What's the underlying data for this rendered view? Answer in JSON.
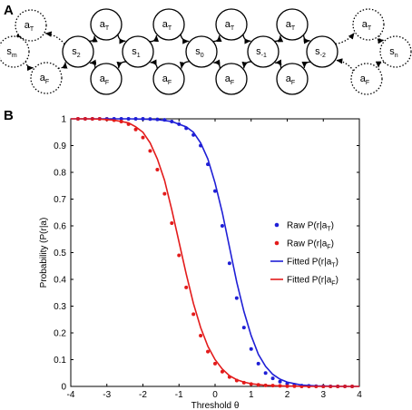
{
  "panels": {
    "a_label": "A",
    "b_label": "B"
  },
  "diagram": {
    "nodes": [
      {
        "id": "am_t",
        "base": "a",
        "sub": "T",
        "style": "dotted"
      },
      {
        "id": "am_f",
        "base": "a",
        "sub": "F",
        "style": "dotted"
      },
      {
        "id": "sm",
        "base": "s",
        "sub": "m",
        "style": "dotted"
      },
      {
        "id": "s2",
        "base": "s",
        "sub": "2",
        "style": "solid"
      },
      {
        "id": "a1_t",
        "base": "a",
        "sub": "T",
        "style": "solid"
      },
      {
        "id": "a1_f",
        "base": "a",
        "sub": "F",
        "style": "solid"
      },
      {
        "id": "s1",
        "base": "s",
        "sub": "1",
        "style": "solid"
      },
      {
        "id": "a2_t",
        "base": "a",
        "sub": "T",
        "style": "solid"
      },
      {
        "id": "a2_f",
        "base": "a",
        "sub": "F",
        "style": "solid"
      },
      {
        "id": "s0",
        "base": "s",
        "sub": "0",
        "style": "solid"
      },
      {
        "id": "a3_t",
        "base": "a",
        "sub": "T",
        "style": "solid"
      },
      {
        "id": "a3_f",
        "base": "a",
        "sub": "F",
        "style": "solid"
      },
      {
        "id": "sm1",
        "base": "s",
        "sub": "-1",
        "style": "solid"
      },
      {
        "id": "a4_t",
        "base": "a",
        "sub": "T",
        "style": "solid"
      },
      {
        "id": "a4_f",
        "base": "a",
        "sub": "F",
        "style": "solid"
      },
      {
        "id": "sm2",
        "base": "s",
        "sub": "-2",
        "style": "solid"
      },
      {
        "id": "an_t",
        "base": "a",
        "sub": "T",
        "style": "dotted"
      },
      {
        "id": "an_f",
        "base": "a",
        "sub": "F",
        "style": "dotted"
      },
      {
        "id": "sn",
        "base": "s",
        "sub": "n",
        "style": "dotted"
      }
    ],
    "edges": [
      [
        "am_t",
        "sm",
        "dotted"
      ],
      [
        "sm",
        "am_f",
        "dotted"
      ],
      [
        "am_f",
        "s2",
        "dotted"
      ],
      [
        "s2",
        "am_t",
        "dotted"
      ],
      [
        "s2",
        "a1_t",
        "solid"
      ],
      [
        "a1_t",
        "s1",
        "solid"
      ],
      [
        "s1",
        "a1_f",
        "solid"
      ],
      [
        "a1_f",
        "s2",
        "solid"
      ],
      [
        "s1",
        "a2_t",
        "solid"
      ],
      [
        "a2_t",
        "s0",
        "solid"
      ],
      [
        "s0",
        "a2_f",
        "solid"
      ],
      [
        "a2_f",
        "s1",
        "solid"
      ],
      [
        "s0",
        "a3_t",
        "solid"
      ],
      [
        "a3_t",
        "sm1",
        "solid"
      ],
      [
        "sm1",
        "a3_f",
        "solid"
      ],
      [
        "a3_f",
        "s0",
        "solid"
      ],
      [
        "sm1",
        "a4_t",
        "solid"
      ],
      [
        "a4_t",
        "sm2",
        "solid"
      ],
      [
        "sm2",
        "a4_f",
        "solid"
      ],
      [
        "a4_f",
        "sm1",
        "solid"
      ],
      [
        "sm2",
        "an_t",
        "dotted"
      ],
      [
        "an_t",
        "sn",
        "dotted"
      ],
      [
        "sn",
        "an_f",
        "dotted"
      ],
      [
        "an_f",
        "sm2",
        "dotted"
      ]
    ]
  },
  "chart_data": {
    "type": "line",
    "title": "",
    "xlabel": "Threshold θ",
    "ylabel": "Probability (P(r|a)",
    "xlim": [
      -4,
      4
    ],
    "ylim": [
      0,
      1
    ],
    "xticks": [
      -4,
      -3,
      -2,
      -1,
      0,
      1,
      2,
      3,
      4
    ],
    "xtick_labels": [
      "-4",
      "-3",
      "-2",
      "-1",
      "0",
      "1",
      "2",
      "3",
      "4"
    ],
    "yticks": [
      0,
      0.1,
      0.2,
      0.3,
      0.4,
      0.5,
      0.6,
      0.7,
      0.8,
      0.9,
      1
    ],
    "ytick_labels": [
      "0",
      "0.1",
      "0.2",
      "0.3",
      "0.4",
      "0.5",
      "0.6",
      "0.7",
      "0.8",
      "0.9",
      "1"
    ],
    "grid": false,
    "legend_position": "right",
    "colors": {
      "blue": "#1f1fd6",
      "red": "#e31b1b"
    },
    "series": [
      {
        "name": "Raw P(r|aT)",
        "label_base": "Raw P(r|a",
        "label_sub": "T",
        "label_end": ")",
        "kind": "scatter",
        "color": "#1f1fd6",
        "x": [
          -3.8,
          -3.6,
          -3.4,
          -3.2,
          -3.0,
          -2.8,
          -2.6,
          -2.4,
          -2.2,
          -2.0,
          -1.8,
          -1.6,
          -1.4,
          -1.2,
          -1.0,
          -0.8,
          -0.6,
          -0.4,
          -0.2,
          0.0,
          0.2,
          0.4,
          0.6,
          0.8,
          1.0,
          1.2,
          1.4,
          1.6,
          1.8,
          2.0,
          2.2,
          2.4,
          2.6,
          2.8,
          3.0,
          3.2,
          3.4,
          3.6,
          3.8
        ],
        "y": [
          1.0,
          1.0,
          1.0,
          1.0,
          1.0,
          1.0,
          1.0,
          1.0,
          1.0,
          1.0,
          0.999,
          0.998,
          0.996,
          0.99,
          0.98,
          0.965,
          0.94,
          0.9,
          0.83,
          0.73,
          0.6,
          0.46,
          0.33,
          0.22,
          0.14,
          0.085,
          0.05,
          0.03,
          0.018,
          0.01,
          0.006,
          0.003,
          0.002,
          0.001,
          0.0,
          0.0,
          0.0,
          0.0,
          0.0
        ]
      },
      {
        "name": "Raw P(r|aF)",
        "label_base": "Raw P(r|a",
        "label_sub": "F",
        "label_end": ")",
        "kind": "scatter",
        "color": "#e31b1b",
        "x": [
          -3.8,
          -3.6,
          -3.4,
          -3.2,
          -3.0,
          -2.8,
          -2.6,
          -2.4,
          -2.2,
          -2.0,
          -1.8,
          -1.6,
          -1.4,
          -1.2,
          -1.0,
          -0.8,
          -0.6,
          -0.4,
          -0.2,
          0.0,
          0.2,
          0.4,
          0.6,
          0.8,
          1.0,
          1.2,
          1.4,
          1.6,
          1.8,
          2.0,
          2.2,
          2.4,
          2.6,
          2.8,
          3.0,
          3.2,
          3.4,
          3.6,
          3.8
        ],
        "y": [
          1.0,
          1.0,
          1.0,
          1.0,
          0.998,
          0.995,
          0.99,
          0.98,
          0.96,
          0.93,
          0.88,
          0.81,
          0.72,
          0.61,
          0.49,
          0.37,
          0.27,
          0.19,
          0.13,
          0.085,
          0.055,
          0.035,
          0.022,
          0.014,
          0.009,
          0.006,
          0.004,
          0.003,
          0.002,
          0.001,
          0.001,
          0.0,
          0.0,
          0.0,
          0.0,
          0.0,
          0.0,
          0.0,
          0.0
        ]
      },
      {
        "name": "Fitted P(r|aT)",
        "label_base": "Fitted P(r|a",
        "label_sub": "T",
        "label_end": ")",
        "kind": "line",
        "color": "#1f1fd6",
        "x": [
          -4.0,
          -3.6,
          -3.2,
          -2.8,
          -2.4,
          -2.0,
          -1.6,
          -1.2,
          -0.8,
          -0.6,
          -0.4,
          -0.2,
          0.0,
          0.2,
          0.4,
          0.6,
          0.8,
          1.0,
          1.2,
          1.4,
          1.6,
          1.8,
          2.0,
          2.4,
          2.8,
          3.2,
          3.6,
          4.0
        ],
        "y": [
          1.0,
          1.0,
          1.0,
          1.0,
          1.0,
          0.999,
          0.997,
          0.99,
          0.97,
          0.95,
          0.91,
          0.85,
          0.76,
          0.65,
          0.52,
          0.39,
          0.28,
          0.19,
          0.12,
          0.075,
          0.045,
          0.027,
          0.016,
          0.005,
          0.002,
          0.001,
          0.0,
          0.0
        ]
      },
      {
        "name": "Fitted P(r|aF)",
        "label_base": "Fitted P(r|a",
        "label_sub": "F",
        "label_end": ")",
        "kind": "line",
        "color": "#e31b1b",
        "x": [
          -4.0,
          -3.6,
          -3.2,
          -2.8,
          -2.4,
          -2.2,
          -2.0,
          -1.8,
          -1.6,
          -1.4,
          -1.2,
          -1.0,
          -0.8,
          -0.6,
          -0.4,
          -0.2,
          0.0,
          0.2,
          0.4,
          0.6,
          0.8,
          1.0,
          1.4,
          1.8,
          2.2,
          2.6,
          3.0,
          3.5,
          4.0
        ],
        "y": [
          1.0,
          1.0,
          0.999,
          0.995,
          0.985,
          0.97,
          0.95,
          0.91,
          0.85,
          0.77,
          0.66,
          0.54,
          0.42,
          0.31,
          0.22,
          0.15,
          0.1,
          0.065,
          0.04,
          0.025,
          0.016,
          0.01,
          0.004,
          0.002,
          0.001,
          0.0,
          0.0,
          0.0,
          0.0
        ]
      }
    ]
  }
}
